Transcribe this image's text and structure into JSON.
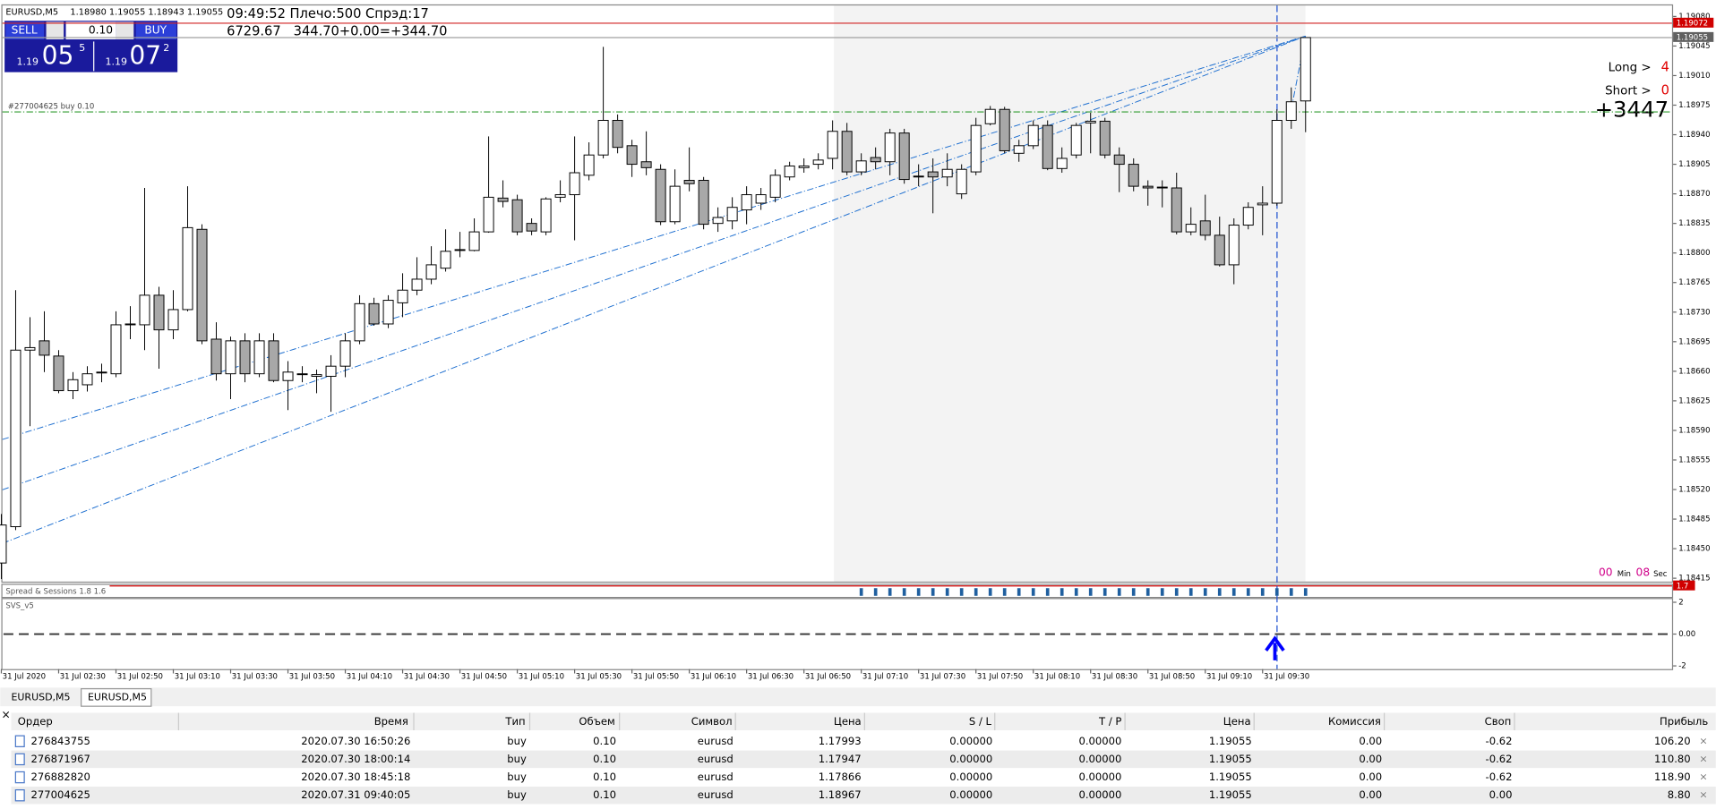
{
  "chart": {
    "type": "candlestick",
    "title": "EURUSD,M5",
    "ohlc_header": "1.18980 1.19055 1.18943 1.19055",
    "open": [
      1.18433,
      1.18476,
      1.18685,
      1.18696,
      1.18678,
      1.18637,
      1.18644,
      1.18658,
      1.18657,
      1.18715,
      1.18715,
      1.1875,
      1.18709,
      1.18733,
      1.18828,
      1.18698,
      1.18657,
      1.18696,
      1.18657,
      1.18696,
      1.18649,
      1.18656,
      1.18654,
      1.18654,
      1.18666,
      1.18696,
      1.1874,
      1.18716,
      1.18741,
      1.18756,
      1.18769,
      1.18782,
      1.18803,
      1.18803,
      1.18825,
      1.18865,
      1.18863,
      1.18835,
      1.18825,
      1.18866,
      1.18869,
      1.18892,
      1.18916,
      1.18957,
      1.18927,
      1.18908,
      1.18899,
      1.18837,
      1.18886,
      1.18886,
      1.18835,
      1.18838,
      1.18851,
      1.18859,
      1.18866,
      1.1889,
      1.18901,
      1.18905,
      1.18912,
      1.18944,
      1.18896,
      1.18913,
      1.18908,
      1.18942,
      1.1889,
      1.18896,
      1.1889,
      1.1887,
      1.18896,
      1.18953,
      1.1897,
      1.18918,
      1.18927,
      1.18951,
      1.189,
      1.18916,
      1.18954,
      1.18956,
      1.18916,
      1.18905,
      1.18879,
      1.18877,
      1.18877,
      1.18825,
      1.18838,
      1.18821,
      1.18786,
      1.18833,
      1.18857,
      1.18859,
      1.18957,
      1.1898
    ],
    "high": [
      1.18491,
      1.18756,
      1.18724,
      1.18731,
      1.18685,
      1.18659,
      1.18666,
      1.18669,
      1.18731,
      1.18737,
      1.18877,
      1.1876,
      1.18756,
      1.18879,
      1.18834,
      1.18718,
      1.18701,
      1.18705,
      1.18705,
      1.18705,
      1.18672,
      1.18666,
      1.18662,
      1.18679,
      1.18705,
      1.1875,
      1.18747,
      1.1875,
      1.18776,
      1.18795,
      1.18808,
      1.18828,
      1.18825,
      1.18841,
      1.18938,
      1.18886,
      1.18869,
      1.18841,
      1.18866,
      1.18886,
      1.18938,
      1.18931,
      1.19044,
      1.18964,
      1.18934,
      1.18944,
      1.18905,
      1.18899,
      1.18925,
      1.1889,
      1.18854,
      1.18866,
      1.18879,
      1.18877,
      1.18899,
      1.18908,
      1.18912,
      1.18918,
      1.18957,
      1.18954,
      1.18918,
      1.18925,
      1.18947,
      1.18947,
      1.18905,
      1.18912,
      1.18918,
      1.18905,
      1.1896,
      1.18974,
      1.18973,
      1.18934,
      1.18957,
      1.18957,
      1.18925,
      1.18954,
      1.18966,
      1.1896,
      1.18925,
      1.18912,
      1.18886,
      1.18886,
      1.18895,
      1.18854,
      1.18869,
      1.18843,
      1.18841,
      1.1886,
      1.18879,
      1.1897,
      1.18996,
      1.19055
    ],
    "low": [
      1.18414,
      1.18472,
      1.18595,
      1.18659,
      1.18634,
      1.18627,
      1.18636,
      1.18647,
      1.18653,
      1.18698,
      1.18685,
      1.18663,
      1.18698,
      1.18731,
      1.18692,
      1.18649,
      1.18627,
      1.18647,
      1.18653,
      1.18647,
      1.18614,
      1.18647,
      1.18634,
      1.18612,
      1.18653,
      1.18692,
      1.18714,
      1.18711,
      1.18724,
      1.1875,
      1.18763,
      1.18778,
      1.18795,
      1.18802,
      1.18824,
      1.18854,
      1.18821,
      1.18821,
      1.18821,
      1.1886,
      1.18815,
      1.18886,
      1.18912,
      1.18918,
      1.1889,
      1.18892,
      1.18833,
      1.18834,
      1.18873,
      1.18828,
      1.18825,
      1.18828,
      1.18834,
      1.18851,
      1.1886,
      1.18886,
      1.18895,
      1.18899,
      1.18899,
      1.18892,
      1.18892,
      1.18899,
      1.18892,
      1.18882,
      1.18879,
      1.18847,
      1.18879,
      1.18864,
      1.18892,
      1.18951,
      1.18918,
      1.18908,
      1.18923,
      1.18898,
      1.18895,
      1.18912,
      1.18918,
      1.18912,
      1.18872,
      1.18873,
      1.18856,
      1.18854,
      1.18822,
      1.18821,
      1.18815,
      1.18784,
      1.18763,
      1.18828,
      1.18821,
      1.18856,
      1.18947,
      1.18943
    ],
    "close": [
      1.18478,
      1.18685,
      1.18688,
      1.18679,
      1.18637,
      1.1865,
      1.18657,
      1.18659,
      1.18715,
      1.18716,
      1.1875,
      1.18709,
      1.18733,
      1.1883,
      1.18696,
      1.18657,
      1.18696,
      1.18657,
      1.18696,
      1.18649,
      1.18659,
      1.18657,
      1.18656,
      1.18666,
      1.18696,
      1.1874,
      1.18716,
      1.18744,
      1.18756,
      1.18769,
      1.18786,
      1.18802,
      1.18804,
      1.18825,
      1.18866,
      1.18861,
      1.18825,
      1.18826,
      1.18864,
      1.18869,
      1.18895,
      1.18916,
      1.18957,
      1.18925,
      1.18905,
      1.18901,
      1.18837,
      1.18879,
      1.18882,
      1.18834,
      1.18842,
      1.18854,
      1.18869,
      1.18869,
      1.18892,
      1.18903,
      1.18903,
      1.1891,
      1.18944,
      1.18896,
      1.18909,
      1.18908,
      1.18942,
      1.18887,
      1.18891,
      1.1889,
      1.18899,
      1.18899,
      1.18951,
      1.1897,
      1.18921,
      1.18927,
      1.18951,
      1.189,
      1.18912,
      1.18951,
      1.18956,
      1.18916,
      1.18905,
      1.18879,
      1.18877,
      1.18878,
      1.18825,
      1.18834,
      1.18821,
      1.18786,
      1.18833,
      1.18854,
      1.18859,
      1.18957,
      1.18979,
      1.19055
    ],
    "ylim": [
      1.18411,
      1.19093
    ],
    "yticks": [
      {
        "value": 1.1908,
        "label": "1.19080"
      },
      1.19045,
      {
        "value": 1.1901,
        "label": "1.19010"
      },
      1.18975,
      {
        "value": 1.1894,
        "label": "1.18940"
      },
      1.18905,
      {
        "value": 1.1887,
        "label": "1.18870"
      },
      1.18835,
      {
        "value": 1.188,
        "label": "1.18800"
      },
      1.18765,
      {
        "value": 1.1873,
        "label": "1.18730"
      },
      1.18695,
      {
        "value": 1.1866,
        "label": "1.18660"
      },
      1.18625,
      {
        "value": 1.1859,
        "label": "1.18590"
      },
      1.18555,
      {
        "value": 1.1852,
        "label": "1.18520"
      },
      1.18485,
      {
        "value": 1.1845,
        "label": "1.18450"
      },
      1.18415
    ],
    "x_labels": [
      "31 Jul 2020",
      "31 Jul 02:30",
      "31 Jul 02:50",
      "31 Jul 03:10",
      "31 Jul 03:30",
      "31 Jul 03:50",
      "31 Jul 04:10",
      "31 Jul 04:30",
      "31 Jul 04:50",
      "31 Jul 05:10",
      "31 Jul 05:30",
      "31 Jul 05:50",
      "31 Jul 06:10",
      "31 Jul 06:30",
      "31 Jul 06:50",
      "31 Jul 07:10",
      "31 Jul 07:30",
      "31 Jul 07:50",
      "31 Jul 08:10",
      "31 Jul 08:30",
      "31 Jul 08:50",
      "31 Jul 09:10",
      "31 Jul 09:30"
    ],
    "ask_line": 1.19072,
    "bid_line": 1.19055,
    "order_line": {
      "value": 1.18967,
      "label": "#277004625 buy 0.10"
    }
  },
  "trade_panel": {
    "sell": "SELL",
    "buy": "BUY",
    "lot": "0.10",
    "bid": {
      "big": "1.19",
      "pips": "05",
      "point": "5"
    },
    "ask": {
      "big": "1.19",
      "pips": "07",
      "point": "2"
    }
  },
  "info": [
    "09:49:52 Плечо:500 Спрэд:17",
    "6729.67   344.70+0.00=+344.70"
  ],
  "signals": {
    "long_label": "Long >",
    "long": "4",
    "short_label": "Short >",
    "short": "0",
    "total": "+3447"
  },
  "timer": {
    "min": "00",
    "min_label": "Min",
    "sec": "08",
    "sec_label": "Sec"
  },
  "spread_window": {
    "title": "Spread & Sessions 1.8 1.6",
    "tag": 1.7
  },
  "svs_window": {
    "title": "SVS_v5",
    "ylim": [
      -2.2,
      2.2
    ],
    "yticks": [
      2,
      {
        "value": 0,
        "label": "0.00"
      },
      -2
    ]
  },
  "tabs": [
    "EURUSD,M5",
    "EURUSD,M5"
  ],
  "table": {
    "columns": [
      "Ордер",
      "Время",
      "Тип",
      "Объем",
      "Символ",
      "Цена",
      "S / L",
      "T / P",
      "Цена",
      "Комиссия",
      "Своп",
      "Прибыль"
    ],
    "rows": [
      [
        "276843755",
        "2020.07.30 16:50:26",
        "buy",
        "0.10",
        "eurusd",
        "1.17993",
        "0.00000",
        "0.00000",
        "1.19055",
        "0.00",
        "-0.62",
        "106.20"
      ],
      [
        "276871967",
        "2020.07.30 18:00:14",
        "buy",
        "0.10",
        "eurusd",
        "1.17947",
        "0.00000",
        "0.00000",
        "1.19055",
        "0.00",
        "-0.62",
        "110.80"
      ],
      [
        "276882820",
        "2020.07.30 18:45:18",
        "buy",
        "0.10",
        "eurusd",
        "1.17866",
        "0.00000",
        "0.00000",
        "1.19055",
        "0.00",
        "-0.62",
        "118.90"
      ],
      [
        "277004625",
        "2020.07.31 09:40:05",
        "buy",
        "0.10",
        "eurusd",
        "1.18967",
        "0.00000",
        "0.00000",
        "1.19055",
        "0.00",
        "0.00",
        "8.80"
      ]
    ]
  }
}
